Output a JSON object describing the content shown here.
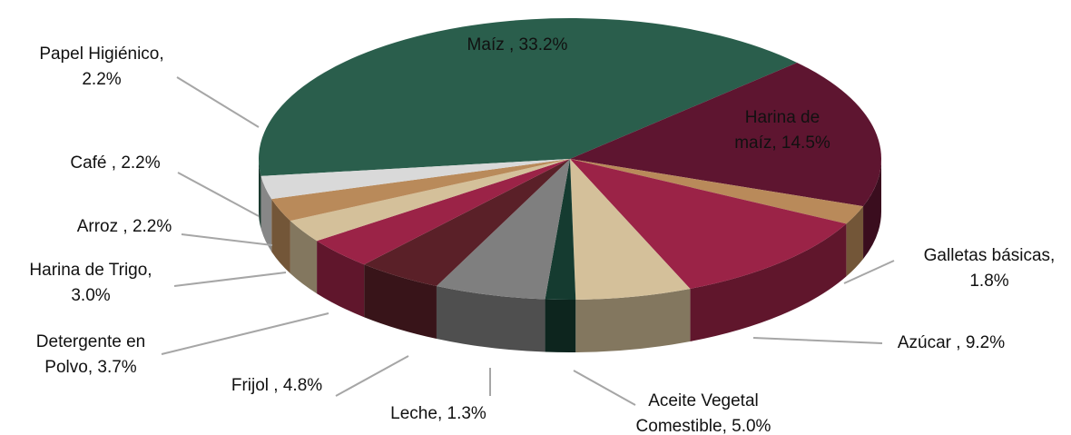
{
  "chart_data": {
    "type": "pie3d",
    "labels": [
      [
        "Maíz , 33.2%"
      ],
      [
        "Harina de",
        "maíz, 14.5%"
      ],
      [
        "Galletas básicas,",
        "1.8%"
      ],
      [
        "Azúcar , 9.2%"
      ],
      [
        "Aceite Vegetal",
        "Comestible, 5.0%"
      ],
      [
        "Leche, 1.3%"
      ],
      [
        "Frijol , 4.8%"
      ],
      [
        "Detergente en",
        "Polvo, 3.7%"
      ],
      [
        "Harina de Trigo,",
        "3.0%"
      ],
      [
        "Arroz , 2.2%"
      ],
      [
        "Café , 2.2%"
      ],
      [
        "Papel Higiénico,",
        "2.2%"
      ]
    ],
    "values": [
      33.2,
      14.5,
      1.8,
      9.2,
      5.0,
      1.3,
      4.8,
      3.7,
      3.0,
      2.2,
      2.2,
      2.2
    ],
    "colors": [
      "#2a5e4c",
      "#5e1530",
      "#b98a5a",
      "#9b2347",
      "#d4c09a",
      "#153b30",
      "#7f7f7f",
      "#5a2028",
      "#9b2347",
      "#d4c09a",
      "#b98a5a",
      "#d9d9d9"
    ]
  }
}
